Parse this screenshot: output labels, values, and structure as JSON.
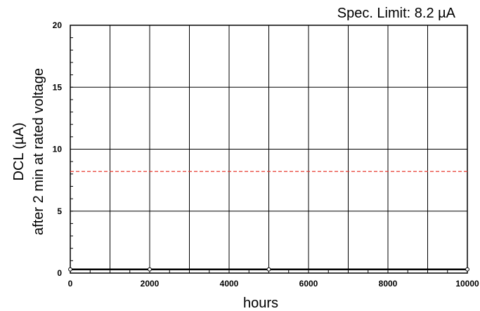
{
  "chart_data": {
    "type": "line",
    "title": "",
    "xlabel": "hours",
    "ylabel": [
      "DCL (µA)",
      "after 2 min at rated voltage"
    ],
    "annotation": "Spec. Limit: 8.2 µA",
    "xlim": [
      0,
      10000
    ],
    "ylim": [
      0,
      20
    ],
    "x_ticks": [
      0,
      2000,
      4000,
      6000,
      8000,
      10000
    ],
    "x_tick_labels": [
      "0",
      "2000",
      "4000",
      "6000",
      "8000",
      "10000"
    ],
    "y_ticks": [
      0,
      5,
      10,
      15,
      20
    ],
    "y_tick_labels": [
      "0",
      "5",
      "10",
      "15",
      "20"
    ],
    "x_gridlines": [
      1000,
      2000,
      3000,
      4000,
      5000,
      6000,
      7000,
      8000,
      9000
    ],
    "y_gridlines": [
      5,
      10,
      15
    ],
    "grid": true,
    "x_minor_step": 500,
    "y_minor_step": 1,
    "spec_limit": {
      "value": 8.2,
      "color": "#e8392f",
      "style": "dashed"
    },
    "series": [
      {
        "x": [
          0,
          2000,
          5000,
          10000
        ],
        "y": [
          0.3,
          0.3,
          0.3,
          0.3
        ],
        "color": "#000000",
        "marker": "open-circle"
      }
    ]
  }
}
